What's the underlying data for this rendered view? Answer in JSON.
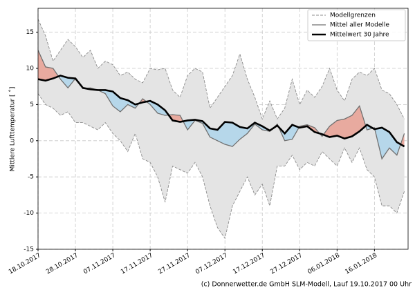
{
  "chart_data": {
    "type": "line",
    "y_label": "Mittlere Lufttemperatur [ ˚]",
    "footer": "(c) Donnerwetter.de GmbH SLM-Modell, Lauf 19.10.2017 00 Uhr",
    "x": [
      "2017-10-18",
      "2017-10-20",
      "2017-10-22",
      "2017-10-24",
      "2017-10-26",
      "2017-10-28",
      "2017-10-30",
      "2017-11-01",
      "2017-11-03",
      "2017-11-05",
      "2017-11-07",
      "2017-11-09",
      "2017-11-11",
      "2017-11-13",
      "2017-11-15",
      "2017-11-17",
      "2017-11-19",
      "2017-11-21",
      "2017-11-23",
      "2017-11-25",
      "2017-11-27",
      "2017-11-29",
      "2017-12-01",
      "2017-12-03",
      "2017-12-05",
      "2017-12-07",
      "2017-12-09",
      "2017-12-11",
      "2017-12-13",
      "2017-12-15",
      "2017-12-17",
      "2017-12-19",
      "2017-12-21",
      "2017-12-23",
      "2017-12-25",
      "2017-12-27",
      "2017-12-29",
      "2017-12-31",
      "2018-01-02",
      "2018-01-04",
      "2018-01-06",
      "2018-01-08",
      "2018-01-10",
      "2018-01-12",
      "2018-01-14",
      "2018-01-16",
      "2018-01-18",
      "2018-01-20",
      "2018-01-22",
      "2018-01-24"
    ],
    "bounds": {
      "name": "Modellgrenzen",
      "color": "#8c8c8c",
      "fill": "#e4e4e4",
      "upper": [
        16.8,
        14.5,
        11.0,
        12.5,
        14.0,
        13.0,
        11.5,
        12.5,
        10.0,
        11.0,
        10.5,
        9.0,
        9.5,
        8.5,
        8.0,
        10.0,
        9.8,
        10.0,
        7.0,
        6.0,
        9.0,
        10.0,
        9.5,
        4.5,
        6.0,
        7.5,
        9.0,
        12.0,
        8.5,
        6.0,
        3.0,
        5.5,
        3.0,
        4.5,
        8.5,
        5.0,
        7.0,
        6.0,
        7.5,
        10.0,
        7.0,
        5.5,
        8.5,
        9.5,
        9.0,
        10.0,
        7.0,
        6.5,
        5.0,
        3.0
      ],
      "lower": [
        6.5,
        5.0,
        4.5,
        3.5,
        4.0,
        2.5,
        2.5,
        2.0,
        1.5,
        2.5,
        1.0,
        0.0,
        -1.5,
        1.0,
        -2.5,
        -3.0,
        -5.0,
        -8.5,
        -3.5,
        -4.0,
        -4.5,
        -3.0,
        -5.0,
        -9.0,
        -12.0,
        -13.5,
        -9.0,
        -7.0,
        -5.0,
        -7.5,
        -6.0,
        -9.0,
        -3.5,
        -3.5,
        -2.0,
        -4.0,
        -3.0,
        -3.5,
        -1.5,
        -2.5,
        -3.5,
        -1.0,
        -3.0,
        -1.0,
        -4.0,
        -5.0,
        -9.0,
        -9.0,
        -10.0,
        -7.0
      ]
    },
    "series": [
      {
        "name": "Mittel aller Modelle",
        "color": "#707070",
        "values": [
          12.5,
          10.2,
          10.0,
          8.5,
          7.3,
          8.6,
          7.2,
          7.3,
          7.0,
          6.5,
          4.8,
          4.0,
          5.0,
          4.5,
          5.8,
          5.0,
          3.8,
          3.5,
          3.6,
          3.5,
          1.5,
          2.8,
          2.4,
          0.5,
          0.0,
          -0.5,
          -0.8,
          0.2,
          1.0,
          2.3,
          1.5,
          1.3,
          2.3,
          0.0,
          0.2,
          2.0,
          2.2,
          1.8,
          0.6,
          2.0,
          2.8,
          3.0,
          3.5,
          4.8,
          1.5,
          1.8,
          -2.5,
          -1.0,
          -2.0,
          1.0
        ]
      },
      {
        "name": "Mittelwert 30 Jahre",
        "color": "#000000",
        "values": [
          8.5,
          8.3,
          8.6,
          9.0,
          8.7,
          8.6,
          7.3,
          7.1,
          7.0,
          7.0,
          6.8,
          5.9,
          5.6,
          5.0,
          5.3,
          5.5,
          5.0,
          4.2,
          2.8,
          2.6,
          2.8,
          2.9,
          2.7,
          1.7,
          1.5,
          2.6,
          2.5,
          1.9,
          1.7,
          2.5,
          2.0,
          1.4,
          2.1,
          1.0,
          2.2,
          1.8,
          2.0,
          1.2,
          0.9,
          0.5,
          0.7,
          0.3,
          0.6,
          1.3,
          2.2,
          1.6,
          1.8,
          1.2,
          -0.2,
          -0.8
        ]
      }
    ],
    "fill_colors": {
      "above": "#e8aa9f",
      "below": "#b6d7ea"
    },
    "xlim": [
      "2017-10-18",
      "2018-01-25"
    ],
    "xticks": [
      {
        "value": "2017-10-18",
        "label": "18.10.2017"
      },
      {
        "value": "2017-10-28",
        "label": "28.10.2017"
      },
      {
        "value": "2017-11-07",
        "label": "07.11.2017"
      },
      {
        "value": "2017-11-17",
        "label": "17.11.2017"
      },
      {
        "value": "2017-11-27",
        "label": "27.11.2017"
      },
      {
        "value": "2017-12-07",
        "label": "07.12.2017"
      },
      {
        "value": "2017-12-17",
        "label": "17.12.2017"
      },
      {
        "value": "2017-12-27",
        "label": "27.12.2017"
      },
      {
        "value": "2018-01-06",
        "label": "06.01.2018"
      },
      {
        "value": "2018-01-16",
        "label": "16.01.2018"
      }
    ],
    "ylim": [
      -15,
      18.3
    ],
    "yticks": [
      -15,
      -10,
      -5,
      0,
      5,
      10,
      15
    ],
    "grid": true,
    "legend": "upper right"
  }
}
